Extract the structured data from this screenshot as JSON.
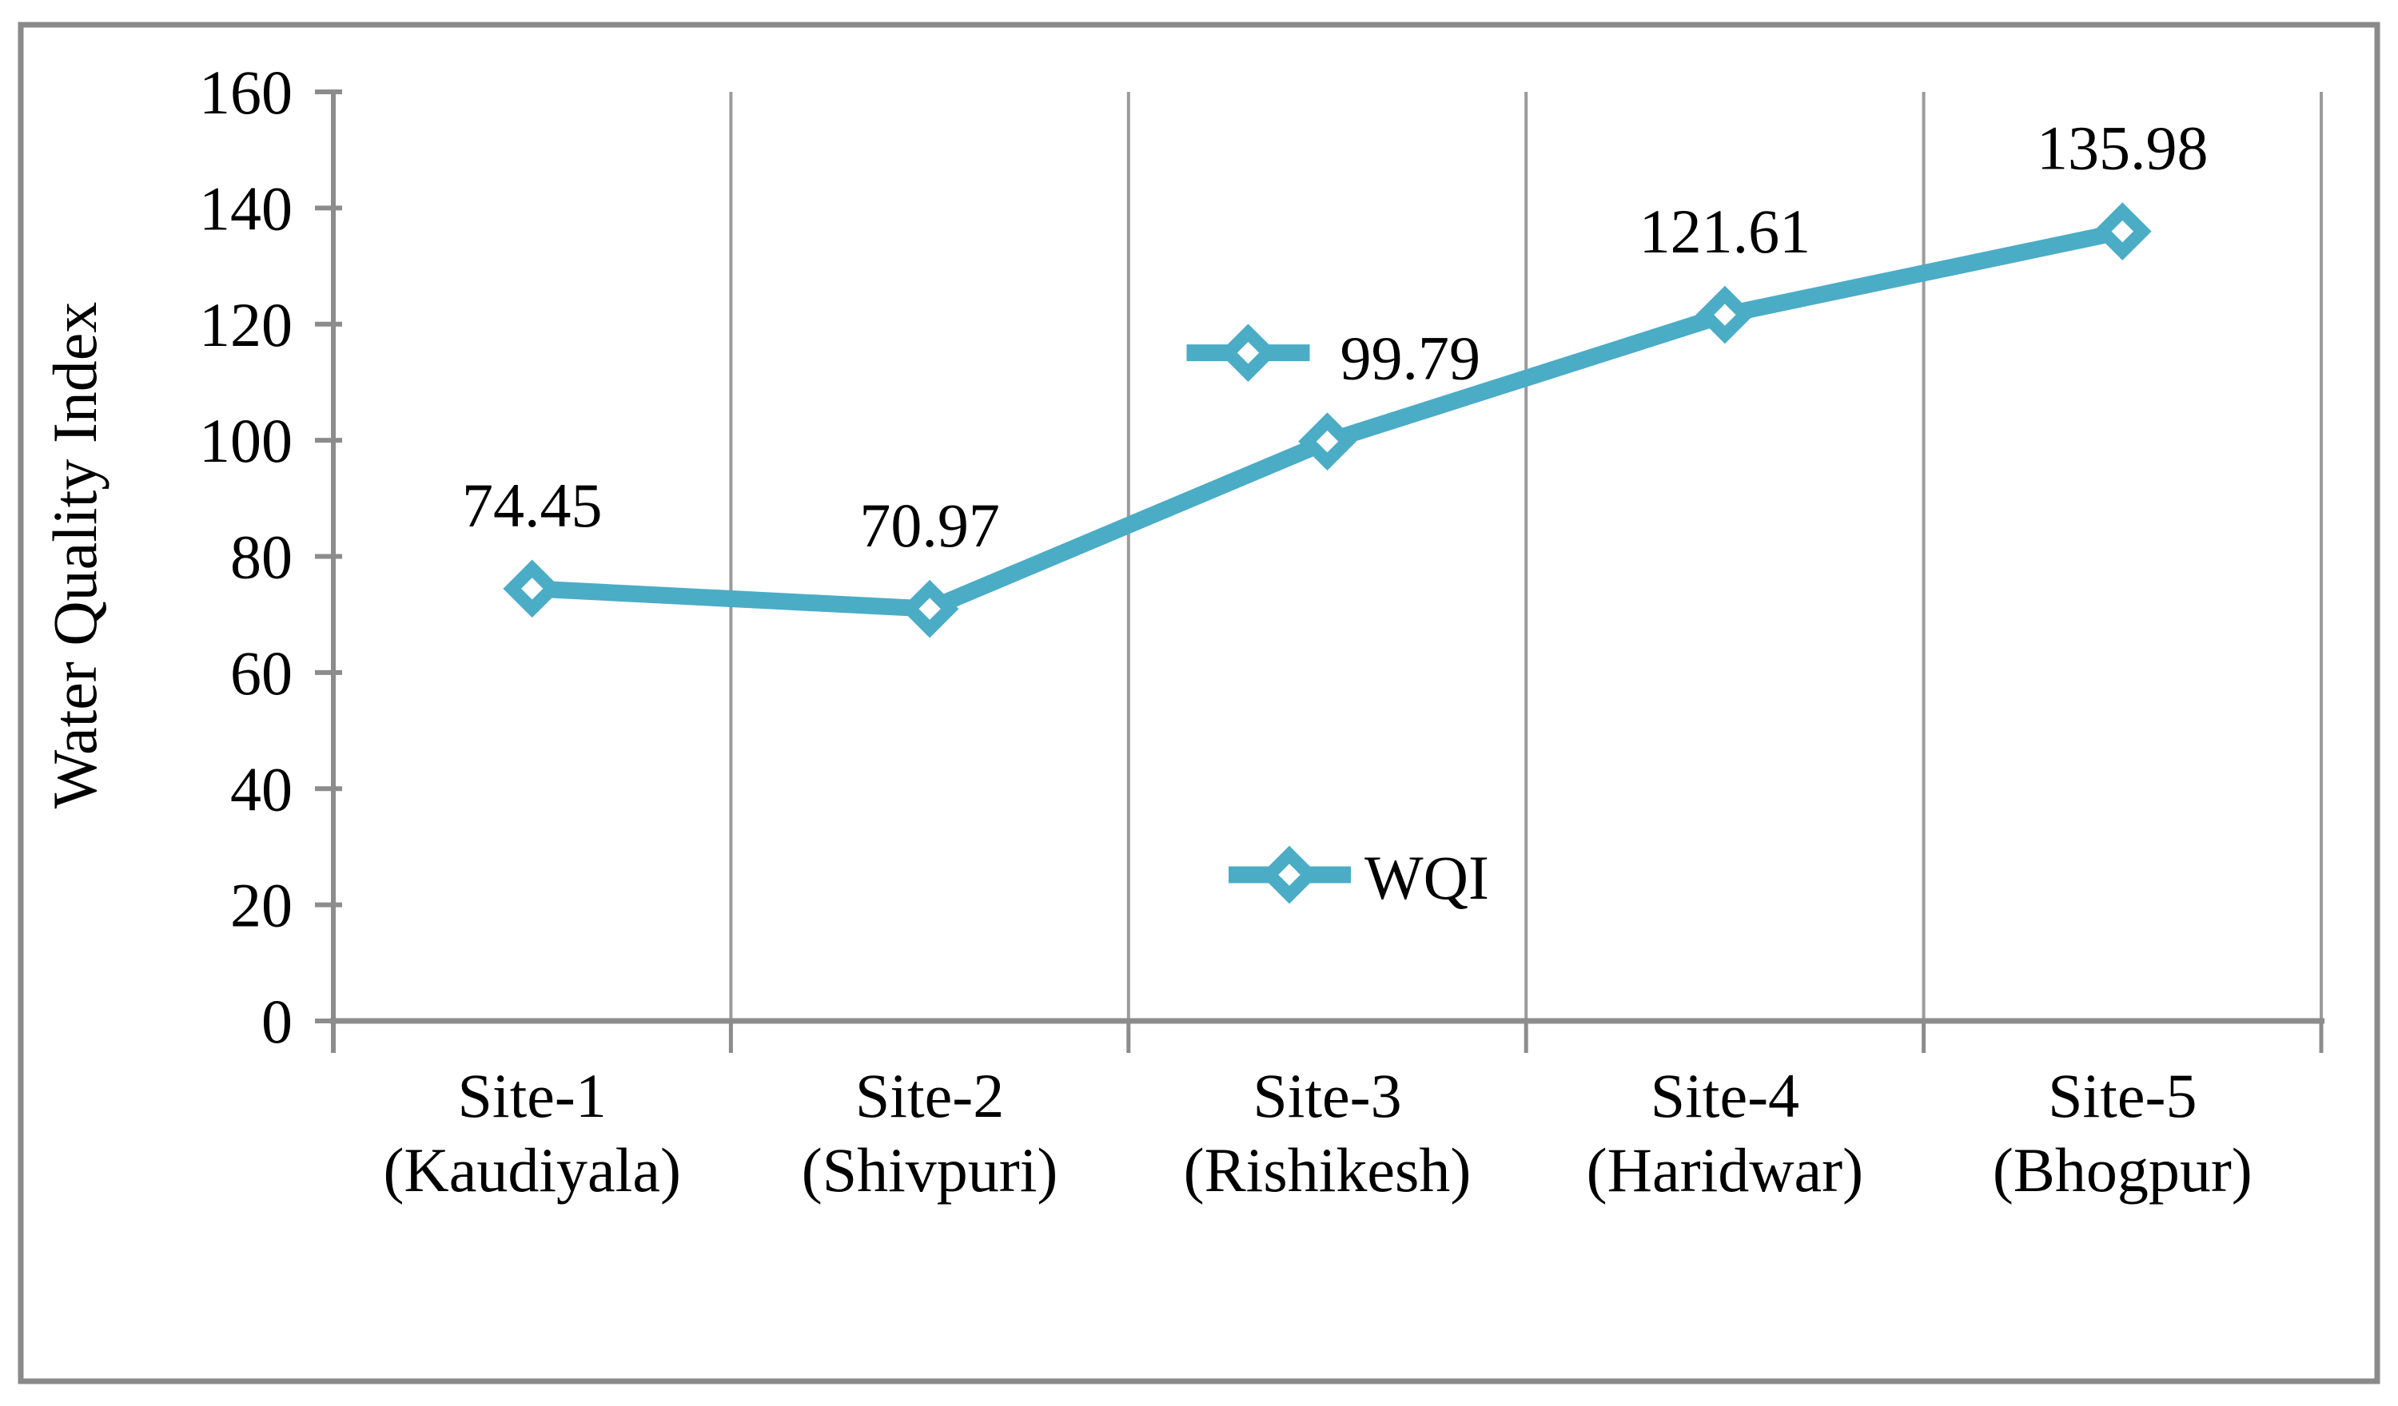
{
  "chart_data": {
    "type": "line",
    "title": "",
    "xlabel": "",
    "ylabel": "Water Quality Index",
    "categories": [
      [
        "Site-1",
        "(Kaudiyala)"
      ],
      [
        "Site-2",
        "(Shivpuri)"
      ],
      [
        "Site-3",
        "(Rishikesh)"
      ],
      [
        "Site-4",
        "(Haridwar)"
      ],
      [
        "Site-5",
        "(Bhogpur)"
      ]
    ],
    "series": [
      {
        "name": "WQI",
        "values": [
          74.45,
          70.97,
          99.79,
          121.61,
          135.98
        ]
      }
    ],
    "data_labels": [
      "74.45",
      "70.97",
      "99.79",
      "121.61",
      "135.98"
    ],
    "label_with_legend_key_index": 2,
    "marker": "diamond-open",
    "ylim": [
      0,
      160
    ],
    "ytick_step": 20,
    "ytick_labels": [
      "0",
      "20",
      "40",
      "60",
      "80",
      "100",
      "120",
      "140",
      "160"
    ],
    "grid": "vertical-category-separators",
    "legend": {
      "label": "WQI",
      "position": "inside-plot-center"
    },
    "colors": {
      "series": "#4BACC6",
      "marker_fill": "#FFFFFF",
      "axis": "#8C8C8C",
      "gridline": "#9B9B9B",
      "border": "#8A8A8A",
      "text": "#000000"
    }
  }
}
